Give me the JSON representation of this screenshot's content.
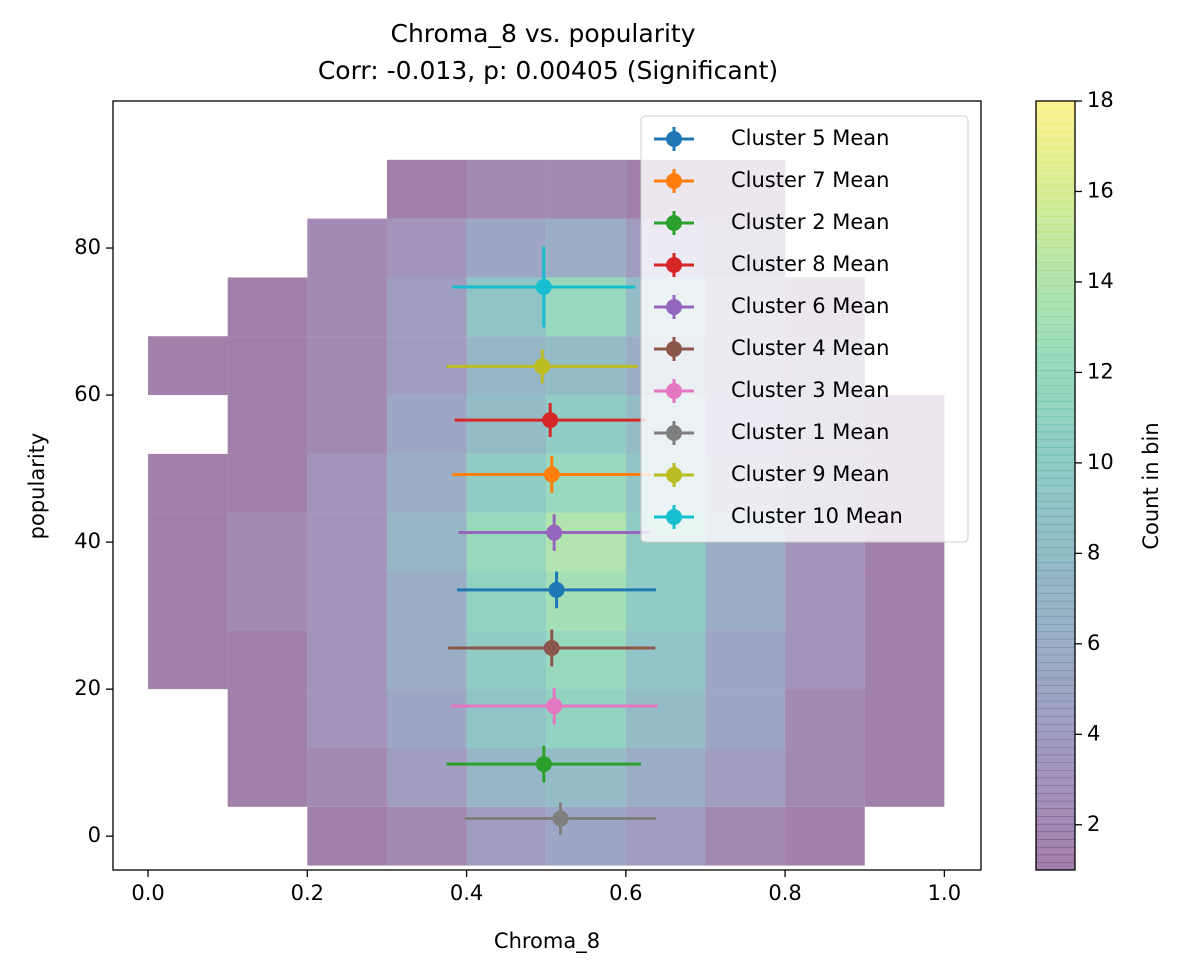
{
  "chart_data": {
    "type": "hexbin_errorbar",
    "title": "Chroma_8 vs. popularity",
    "subtitle": "Corr: -0.013, p: 0.00405 (Significant)",
    "x_label": "Chroma_8",
    "y_label": "popularity",
    "xlim": [
      -0.044,
      1.046
    ],
    "ylim": [
      -4.6,
      100
    ],
    "xticks": [
      {
        "value": 0,
        "label": "0.0"
      },
      {
        "value": 0.2,
        "label": "0.2"
      },
      {
        "value": 0.4,
        "label": "0.4"
      },
      {
        "value": 0.6,
        "label": "0.6"
      },
      {
        "value": 0.8,
        "label": "0.8"
      },
      {
        "value": 1,
        "label": "1.0"
      }
    ],
    "yticks": [
      0,
      20,
      40,
      60,
      80
    ],
    "legend": "upper right",
    "density": {
      "x": [
        0.05,
        0.15,
        0.25,
        0.35,
        0.45,
        0.55,
        0.65,
        0.75,
        0.85,
        0.95
      ],
      "y": [
        0,
        8,
        16,
        24,
        32,
        40,
        48,
        56,
        64,
        72,
        80,
        88
      ],
      "counts": [
        [
          null,
          null,
          1,
          2,
          4,
          5,
          4,
          2,
          1,
          null
        ],
        [
          null,
          1,
          2,
          4,
          7,
          8,
          6,
          4,
          2,
          1
        ],
        [
          null,
          1,
          3,
          5,
          9,
          11,
          8,
          5,
          2,
          1
        ],
        [
          1,
          1,
          3,
          6,
          10,
          12,
          9,
          5,
          3,
          1
        ],
        [
          1,
          2,
          3,
          6,
          11,
          13,
          10,
          6,
          3,
          1
        ],
        [
          1,
          2,
          3,
          7,
          12,
          14,
          10,
          6,
          3,
          1
        ],
        [
          1,
          1,
          3,
          6,
          10,
          12,
          9,
          5,
          2,
          1
        ],
        [
          null,
          1,
          2,
          5,
          8,
          10,
          8,
          4,
          2,
          1
        ],
        [
          1,
          1,
          2,
          4,
          7,
          8,
          6,
          3,
          2,
          null
        ],
        [
          null,
          1,
          2,
          4,
          9,
          12,
          8,
          3,
          1,
          null
        ],
        [
          null,
          null,
          2,
          3,
          5,
          6,
          4,
          2,
          null,
          null
        ],
        [
          null,
          null,
          null,
          1,
          2,
          2,
          1,
          1,
          null,
          null
        ]
      ]
    },
    "colorbar": {
      "label": "Count in bin",
      "lim": [
        1,
        18
      ],
      "ticks": [
        2,
        4,
        6,
        8,
        10,
        12,
        14,
        16,
        18
      ]
    },
    "series": [
      {
        "name": "Cluster 5 Mean",
        "color": "#1f77b4",
        "x": 0.513,
        "y": 33.5,
        "xerr": 0.125,
        "yerr": 2.5
      },
      {
        "name": "Cluster 7 Mean",
        "color": "#ff7f0e",
        "x": 0.507,
        "y": 49.2,
        "xerr": 0.125,
        "yerr": 2.5
      },
      {
        "name": "Cluster 2 Mean",
        "color": "#2ca02c",
        "x": 0.497,
        "y": 9.8,
        "xerr": 0.122,
        "yerr": 2.5
      },
      {
        "name": "Cluster 8 Mean",
        "color": "#d62728",
        "x": 0.505,
        "y": 56.6,
        "xerr": 0.12,
        "yerr": 2.3
      },
      {
        "name": "Cluster 6 Mean",
        "color": "#9467bd",
        "x": 0.51,
        "y": 41.3,
        "xerr": 0.12,
        "yerr": 2.5
      },
      {
        "name": "Cluster 4 Mean",
        "color": "#8c564b",
        "x": 0.507,
        "y": 25.6,
        "xerr": 0.13,
        "yerr": 2.5
      },
      {
        "name": "Cluster 3 Mean",
        "color": "#e377c2",
        "x": 0.51,
        "y": 17.7,
        "xerr": 0.13,
        "yerr": 2.5
      },
      {
        "name": "Cluster 1 Mean",
        "color": "#7f7f7f",
        "x": 0.518,
        "y": 2.4,
        "xerr": 0.12,
        "yerr": 2.2
      },
      {
        "name": "Cluster 9 Mean",
        "color": "#bcbd22",
        "x": 0.495,
        "y": 63.9,
        "xerr": 0.12,
        "yerr": 2.3
      },
      {
        "name": "Cluster 10 Mean",
        "color": "#17becf",
        "x": 0.497,
        "y": 74.7,
        "xerr": 0.115,
        "yerr": 5.5
      }
    ]
  }
}
